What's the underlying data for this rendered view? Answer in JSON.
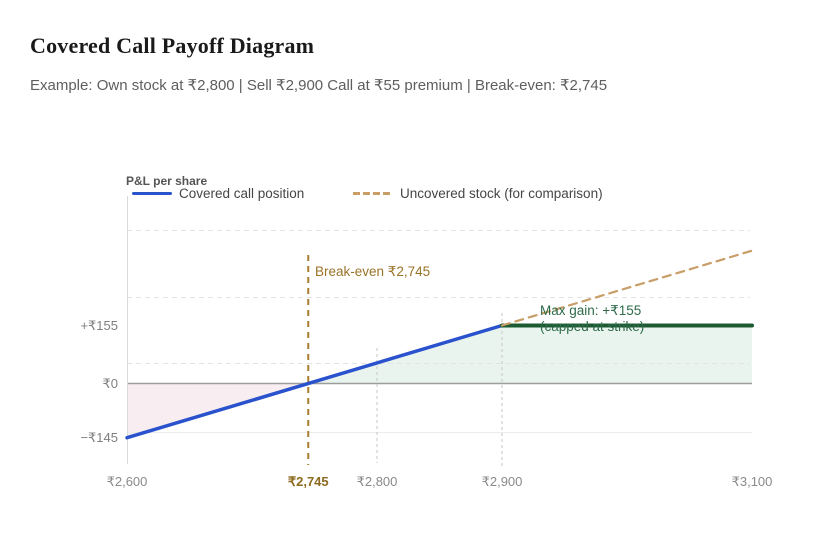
{
  "header": {
    "title": "Covered Call Payoff Diagram",
    "subtitle": "Example: Own stock at ₹2,800 | Sell ₹2,900 Call at ₹55 premium | Break-even: ₹2,745"
  },
  "chart_data": {
    "type": "line",
    "title": "Covered Call Payoff Diagram",
    "axis_label": "P&L per share",
    "xlim": [
      2600,
      3100
    ],
    "grid": "dashed-horizontal",
    "legend_position": "top",
    "x_ticks": [
      {
        "label": "₹2,600",
        "value": 2600,
        "highlight": false
      },
      {
        "label": "₹2,745",
        "value": 2745,
        "highlight": true
      },
      {
        "label": "₹2,800",
        "value": 2800,
        "highlight": false
      },
      {
        "label": "₹2,900",
        "value": 2900,
        "highlight": false
      },
      {
        "label": "₹3,100",
        "value": 3100,
        "highlight": false
      }
    ],
    "y_ticks": [
      {
        "label": "+₹155",
        "value": 155
      },
      {
        "label": "₹0",
        "value": 0
      },
      {
        "label": "−₹145",
        "value": -145
      }
    ],
    "legend": [
      {
        "label": "Covered call position",
        "color": "#2b52cd",
        "style": "solid"
      },
      {
        "label": "Uncovered stock (for comparison)",
        "color": "#c89d66",
        "style": "dashed"
      }
    ],
    "series": [
      {
        "name": "Covered call position",
        "role": "payoff_rising",
        "color": "#2b52cd",
        "style": "solid",
        "points": [
          [
            2600,
            -145
          ],
          [
            2900,
            155
          ]
        ]
      },
      {
        "name": "Covered call position (capped at strike)",
        "role": "payoff_capped",
        "color": "#1c5b32",
        "style": "solid",
        "points": [
          [
            2900,
            155
          ],
          [
            3100,
            155
          ]
        ]
      },
      {
        "name": "Uncovered stock (for comparison)",
        "role": "comparison",
        "color": "#c89d66",
        "style": "dashed",
        "points": [
          [
            2900,
            155
          ],
          [
            3100,
            355
          ]
        ]
      }
    ],
    "fills": [
      {
        "name": "loss-region",
        "color": "#f8eef1",
        "points": [
          [
            2600,
            0
          ],
          [
            2745,
            0
          ],
          [
            2600,
            -145
          ]
        ]
      },
      {
        "name": "gain-region",
        "color": "#e9f4ee",
        "points": [
          [
            2745,
            0
          ],
          [
            2900,
            155
          ],
          [
            3100,
            155
          ],
          [
            3100,
            0
          ]
        ]
      }
    ],
    "markers": [
      {
        "id": "break_even",
        "x": 2745,
        "color": "#aa7d2f",
        "emphasis": true
      },
      {
        "id": "own_price",
        "x": 2800,
        "color": "#c6c6c6",
        "emphasis": false
      },
      {
        "id": "strike",
        "x": 2900,
        "color": "#c6c6c6",
        "emphasis": false
      }
    ],
    "annotations": {
      "break_even": {
        "text": "Break-even ₹2,745",
        "color": "#9a7328"
      },
      "max_gain": {
        "line1": "Max gain: +₹155",
        "line2": "(capped at strike)",
        "color": "#2f6b4a"
      }
    },
    "key_values": {
      "own_stock_price": 2800,
      "strike": 2900,
      "premium": 55,
      "break_even": 2745,
      "max_gain_per_share": 155,
      "pnl_at_2600": -145
    },
    "accent_colors": {
      "zero_line": "#9d9d9d",
      "gridline": "#e3e3e3",
      "axis_line": "#d9d9d9"
    }
  }
}
